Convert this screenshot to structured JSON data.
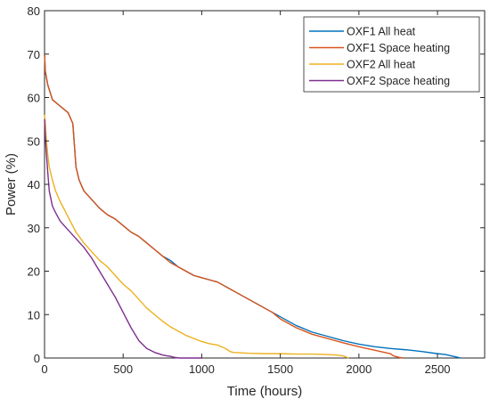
{
  "chart_data": {
    "type": "line",
    "title": "",
    "xlabel": "Time (hours)",
    "ylabel": "Power (%)",
    "xlim": [
      0,
      2800
    ],
    "ylim": [
      0,
      80
    ],
    "xticks": [
      0,
      500,
      1000,
      1500,
      2000,
      2500
    ],
    "yticks": [
      0,
      10,
      20,
      30,
      40,
      50,
      60,
      70,
      80
    ],
    "grid": false,
    "legend_position": "top-right",
    "series": [
      {
        "name": "OXF1 All heat",
        "color": "#0072BD",
        "x": [
          0,
          5,
          20,
          50,
          100,
          150,
          180,
          200,
          220,
          250,
          300,
          350,
          400,
          450,
          500,
          550,
          600,
          650,
          700,
          750,
          800,
          850,
          900,
          950,
          1000,
          1050,
          1100,
          1150,
          1200,
          1250,
          1300,
          1350,
          1400,
          1450,
          1500,
          1550,
          1600,
          1700,
          1800,
          1900,
          2000,
          2100,
          2200,
          2300,
          2400,
          2500,
          2550,
          2600,
          2650
        ],
        "y": [
          70,
          66,
          63,
          59.5,
          58,
          56.5,
          54,
          44,
          41,
          38.5,
          36.5,
          34.5,
          33,
          32,
          30.5,
          29,
          28,
          26.5,
          25,
          23.5,
          22.5,
          21,
          20,
          19,
          18.5,
          18,
          17.5,
          16.5,
          15.5,
          14.5,
          13.5,
          12.5,
          11.5,
          10.5,
          9.5,
          8.5,
          7.5,
          6,
          5,
          4,
          3.2,
          2.6,
          2.2,
          1.9,
          1.5,
          1.0,
          0.8,
          0.4,
          0
        ]
      },
      {
        "name": "OXF1 Space heating",
        "color": "#D95319",
        "x": [
          0,
          5,
          20,
          50,
          100,
          150,
          180,
          200,
          220,
          250,
          300,
          350,
          400,
          450,
          500,
          550,
          600,
          650,
          700,
          750,
          800,
          850,
          900,
          950,
          1000,
          1050,
          1100,
          1150,
          1200,
          1250,
          1300,
          1350,
          1400,
          1450,
          1500,
          1550,
          1600,
          1700,
          1800,
          1900,
          2000,
          2050,
          2100,
          2150,
          2200,
          2220,
          2250,
          2280
        ],
        "y": [
          70,
          66,
          63,
          59.5,
          58,
          56.5,
          54,
          44,
          41,
          38.5,
          36.5,
          34.5,
          33,
          32,
          30.5,
          29,
          28,
          26.5,
          25,
          23.5,
          22,
          21,
          20,
          19,
          18.5,
          18,
          17.5,
          16.5,
          15.5,
          14.5,
          13.5,
          12.5,
          11.5,
          10.5,
          9,
          8,
          7,
          5.5,
          4.5,
          3.5,
          2.6,
          2.2,
          1.8,
          1.4,
          1.0,
          0.5,
          0.2,
          0
        ]
      },
      {
        "name": "OXF2 All heat",
        "color": "#EDB120",
        "x": [
          0,
          5,
          10,
          20,
          30,
          50,
          70,
          100,
          150,
          200,
          250,
          300,
          350,
          400,
          450,
          500,
          550,
          600,
          650,
          700,
          750,
          800,
          850,
          900,
          950,
          1000,
          1050,
          1100,
          1150,
          1180,
          1200,
          1250,
          1300,
          1400,
          1500,
          1600,
          1700,
          1800,
          1850,
          1900,
          1920,
          1935
        ],
        "y": [
          56,
          54,
          51,
          47,
          44,
          41,
          38.5,
          36,
          32.5,
          29,
          26.5,
          24.5,
          22.5,
          21,
          19,
          17,
          15.5,
          13.5,
          11.5,
          10,
          8.5,
          7.2,
          6.2,
          5.2,
          4.5,
          3.8,
          3.3,
          3.0,
          2.2,
          1.5,
          1.3,
          1.2,
          1.1,
          1.0,
          1.0,
          0.9,
          0.9,
          0.8,
          0.7,
          0.5,
          0.2,
          0
        ]
      },
      {
        "name": "OXF2 Space heating",
        "color": "#7E2F8E",
        "x": [
          0,
          5,
          10,
          20,
          30,
          50,
          70,
          100,
          150,
          200,
          250,
          300,
          350,
          400,
          450,
          500,
          550,
          600,
          650,
          700,
          750,
          780,
          800,
          820,
          840,
          860,
          900,
          950,
          1000
        ],
        "y": [
          55,
          51,
          48,
          43,
          38.5,
          35,
          33.5,
          31.5,
          29.5,
          27.5,
          25.5,
          23,
          20,
          17,
          14,
          10.5,
          7,
          4,
          2.2,
          1.3,
          0.7,
          0.5,
          0.4,
          0.2,
          0.1,
          0,
          0,
          0,
          0
        ]
      }
    ]
  }
}
